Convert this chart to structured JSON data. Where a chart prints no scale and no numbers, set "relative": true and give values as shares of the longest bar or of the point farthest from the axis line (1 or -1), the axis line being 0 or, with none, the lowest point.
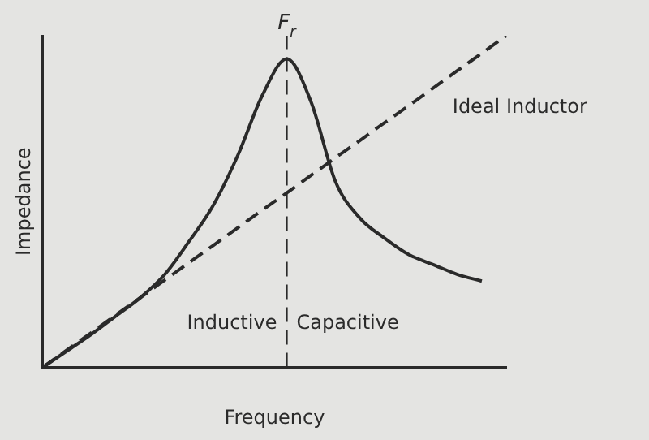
{
  "chart_data": {
    "type": "line",
    "relative": true,
    "xlabel": "Frequency",
    "ylabel": "Impedance",
    "categories": [
      null,
      null,
      null,
      null,
      null,
      null,
      null,
      null,
      null,
      null,
      null,
      null,
      null,
      null,
      null,
      null,
      null,
      null,
      null,
      null
    ],
    "series": [
      {
        "color": "#2a2a2a",
        "line_style": "solid",
        "values": [
          0,
          0.05,
          0.1,
          0.155,
          0.21,
          0.28,
          0.38,
          0.49,
          0.64,
          0.82,
          0.93,
          0.8,
          0.56,
          0.45,
          0.39,
          0.34,
          0.31,
          0.28,
          0.26,
          null
        ]
      },
      {
        "name": "Ideal Inductor",
        "color": "#2a2a2a",
        "line_style": "dashed",
        "values": [
          0,
          0.0526,
          0.105,
          0.158,
          0.21,
          0.263,
          0.316,
          0.368,
          0.421,
          0.474,
          0.526,
          0.579,
          0.632,
          0.684,
          0.737,
          0.789,
          0.842,
          0.895,
          0.947,
          1
        ]
      }
    ],
    "annotations": [
      "F$_{r}$",
      "Inductive",
      "Capacitive"
    ],
    "grid": false,
    "legend": false,
    "marker": "none"
  }
}
